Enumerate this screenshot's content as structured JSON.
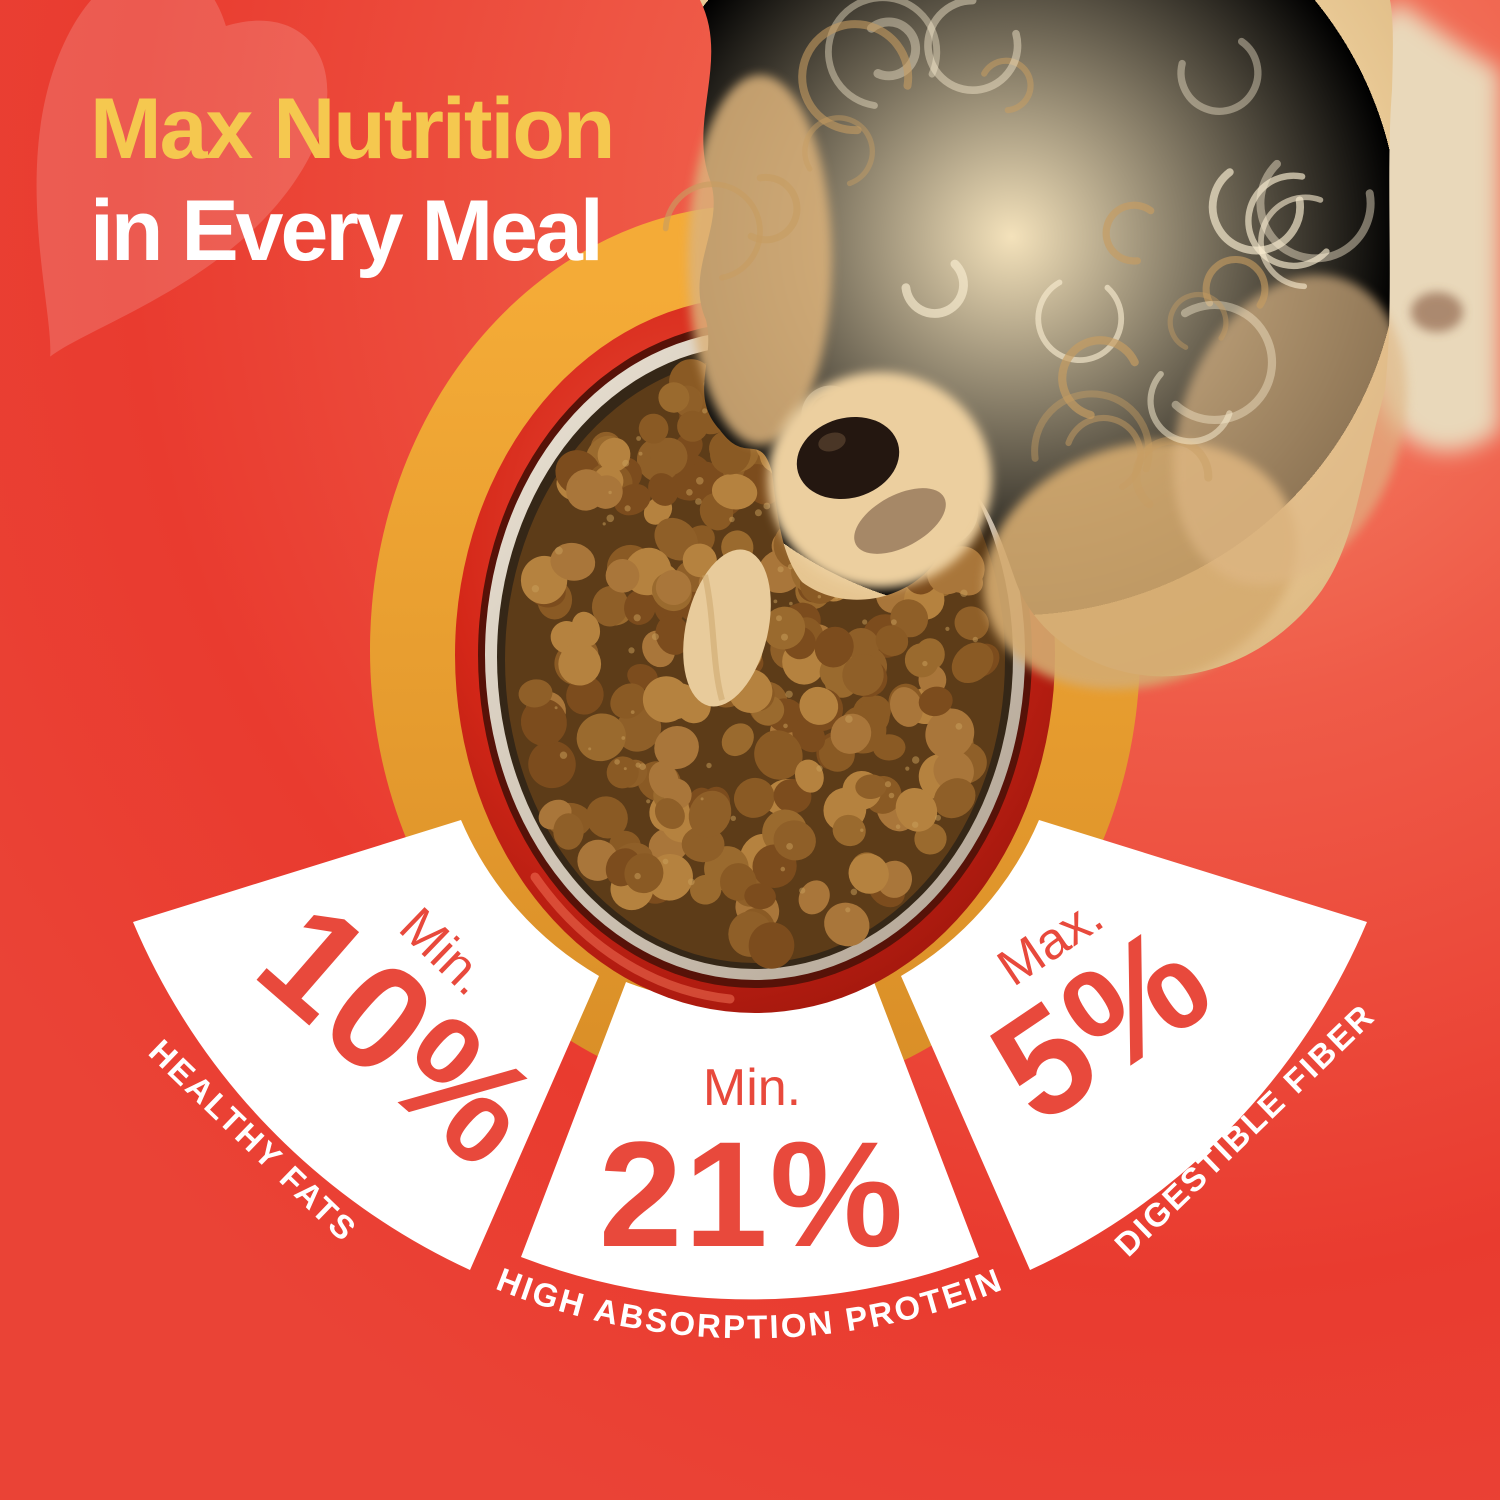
{
  "header": {
    "title_line1": "Max Nutrition",
    "title_line2": "in Every Meal"
  },
  "stats": [
    {
      "qualifier": "Min.",
      "value": "10%",
      "label": "HEALTHY FATS"
    },
    {
      "qualifier": "Min.",
      "value": "21%",
      "label": "HIGH ABSORPTION PROTEIN"
    },
    {
      "qualifier": "Max.",
      "value": "5%",
      "label": "DIGESTIBLE FIBER"
    }
  ],
  "colors": {
    "background_red": "#e93b2f",
    "background_light": "#f58a6c",
    "background_bottom": "#ec5042",
    "title_yellow": "#f5c84f",
    "title_white": "#ffffff",
    "stat_red": "#e8493c",
    "label_white": "#ffffff",
    "wedge_white": "#ffffff",
    "ring_orange_top": "#f4ab37",
    "ring_orange_bottom": "#d98e27",
    "bowl_red": "#d42718",
    "bowl_metal": "#d8cfc2",
    "kibble_base": "#5d3c18",
    "fur_cream": "#ecd2a4",
    "nose_brown": "#241710",
    "heart_tint": "#ffffff"
  },
  "illustration": {
    "dog": "cream-curly-dog-eating-from-bowl",
    "bowl": "red-dog-bowl-with-kibble",
    "heart": "heart-watermark",
    "ring": "orange-halo-circle",
    "kibble_colors": [
      "#9a6a2e",
      "#8a5a24",
      "#a9763a",
      "#7c4c1d",
      "#b5823f",
      "#8f5f28"
    ],
    "kibble_speckle": "#caa05c",
    "curl_shadow": "#c79d61",
    "curl_highlight": "#f8ecd0"
  }
}
